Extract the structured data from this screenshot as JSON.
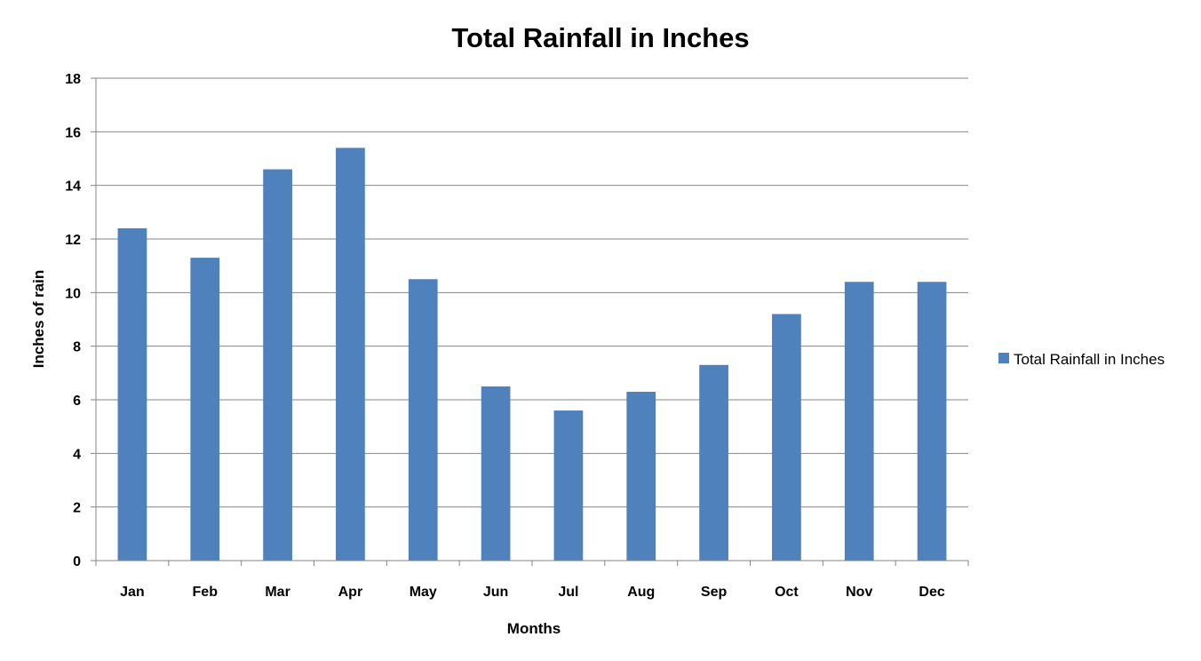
{
  "chart_data": {
    "type": "bar",
    "title": "Total Rainfall in Inches",
    "xlabel": "Months",
    "ylabel": "Inches of rain",
    "categories": [
      "Jan",
      "Feb",
      "Mar",
      "Apr",
      "May",
      "Jun",
      "Jul",
      "Aug",
      "Sep",
      "Oct",
      "Nov",
      "Dec"
    ],
    "series": [
      {
        "name": "Total Rainfall in Inches",
        "values": [
          12.4,
          11.3,
          14.6,
          15.4,
          10.5,
          6.5,
          5.6,
          6.3,
          7.3,
          9.2,
          10.4,
          10.4
        ],
        "color": "#4F81BD"
      }
    ],
    "ylim": [
      0,
      18
    ],
    "yticks": [
      0,
      2,
      4,
      6,
      8,
      10,
      12,
      14,
      16,
      18
    ],
    "grid": true,
    "legend": "right",
    "gridline_color": "#868686"
  }
}
